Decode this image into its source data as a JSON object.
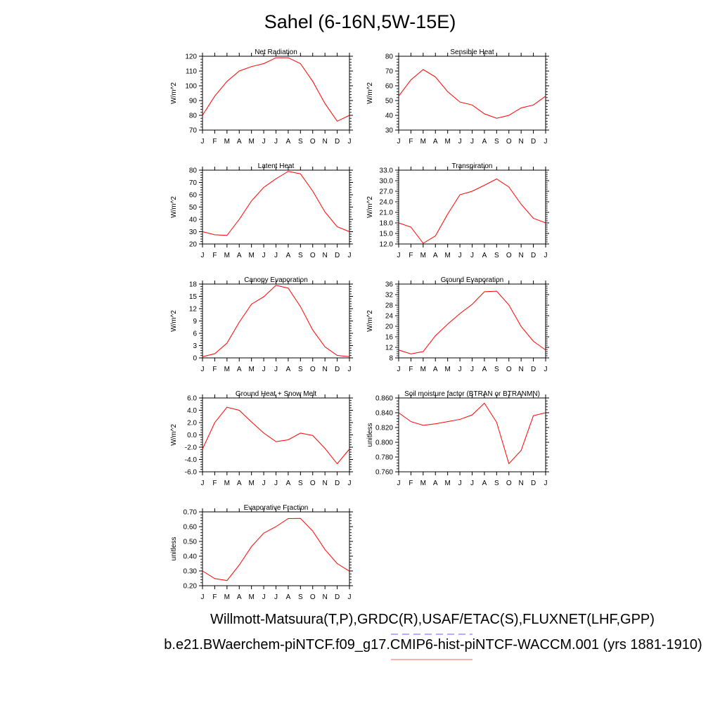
{
  "page": {
    "title": "Sahel (6-16N,5W-15E)",
    "legend_line_1": "Willmott-Matsuura(T,P),GRDC(R),USAF/ETAC(S),FLUXNET(LHF,GPP)",
    "legend_line_2": "b.e21.BWaerchem-piNTCF.f09_g17.CMIP6-hist-piNTCF-WACCM.001 (yrs 1881-1910)",
    "legend_obs_color": "#8080ff",
    "legend_model_color": "#ff8080",
    "line_color": "#ff0000"
  },
  "chart_data": [
    {
      "type": "line",
      "title": "Net Radiation",
      "ylabel": "W/m^2",
      "categories": [
        "J",
        "F",
        "M",
        "A",
        "M",
        "J",
        "J",
        "A",
        "S",
        "O",
        "N",
        "D",
        "J"
      ],
      "ylim": [
        70,
        120
      ],
      "yticks": [
        "70",
        "80",
        "90",
        "100",
        "110",
        "120"
      ],
      "series": [
        {
          "values": [
            80,
            93,
            103,
            110,
            113,
            115,
            119,
            119,
            115,
            103,
            88,
            76,
            80
          ]
        }
      ]
    },
    {
      "type": "line",
      "title": "Sensible Heat",
      "ylabel": "W/m^2",
      "categories": [
        "J",
        "F",
        "M",
        "A",
        "M",
        "J",
        "J",
        "A",
        "S",
        "O",
        "N",
        "D",
        "J"
      ],
      "ylim": [
        30,
        80
      ],
      "yticks": [
        "30",
        "40",
        "50",
        "60",
        "70",
        "80"
      ],
      "series": [
        {
          "values": [
            53,
            64,
            71,
            66,
            56,
            49,
            47,
            41,
            38,
            40,
            45,
            47,
            53
          ]
        }
      ]
    },
    {
      "type": "line",
      "title": "Latent Heat",
      "ylabel": "W/m^2",
      "categories": [
        "J",
        "F",
        "M",
        "A",
        "M",
        "J",
        "J",
        "A",
        "S",
        "O",
        "N",
        "D",
        "J"
      ],
      "ylim": [
        20,
        80
      ],
      "yticks": [
        "20",
        "30",
        "40",
        "50",
        "60",
        "70",
        "80"
      ],
      "series": [
        {
          "values": [
            30,
            27.5,
            27,
            40,
            55,
            66,
            73,
            79,
            77,
            63,
            46,
            34,
            30
          ]
        }
      ]
    },
    {
      "type": "line",
      "title": "Transpiration",
      "ylabel": "W/m^2",
      "categories": [
        "J",
        "F",
        "M",
        "A",
        "M",
        "J",
        "J",
        "A",
        "S",
        "O",
        "N",
        "D",
        "J"
      ],
      "ylim": [
        12,
        33
      ],
      "yticks": [
        "12.0",
        "15.0",
        "18.0",
        "21.0",
        "24.0",
        "27.0",
        "30.0",
        "33.0"
      ],
      "series": [
        {
          "values": [
            18,
            16.8,
            12.2,
            14.3,
            20.5,
            26,
            27,
            28.7,
            30.5,
            28.2,
            23.3,
            19.3,
            18
          ]
        }
      ]
    },
    {
      "type": "line",
      "title": "Canopy Evaporation",
      "ylabel": "W/m^2",
      "categories": [
        "J",
        "F",
        "M",
        "A",
        "M",
        "J",
        "J",
        "A",
        "S",
        "O",
        "N",
        "D",
        "J"
      ],
      "ylim": [
        0,
        18
      ],
      "yticks": [
        "0",
        "3",
        "6",
        "9",
        "12",
        "15",
        "18"
      ],
      "series": [
        {
          "values": [
            0.3,
            1,
            3.6,
            8.7,
            13.1,
            14.9,
            17.7,
            17,
            12.5,
            6.8,
            2.7,
            0.6,
            0.3
          ]
        }
      ]
    },
    {
      "type": "line",
      "title": "Ground Evaporation",
      "ylabel": "W/m^2",
      "categories": [
        "J",
        "F",
        "M",
        "A",
        "M",
        "J",
        "J",
        "A",
        "S",
        "O",
        "N",
        "D",
        "J"
      ],
      "ylim": [
        8,
        36
      ],
      "yticks": [
        "8",
        "12",
        "16",
        "20",
        "24",
        "28",
        "32",
        "36"
      ],
      "series": [
        {
          "values": [
            11,
            9.5,
            10.4,
            16.4,
            20.8,
            24.8,
            28.3,
            33.1,
            33.3,
            28.1,
            19.9,
            14.3,
            11
          ]
        }
      ]
    },
    {
      "type": "line",
      "title": "Ground Heat + Snow Melt",
      "ylabel": "W/m^2",
      "categories": [
        "J",
        "F",
        "M",
        "A",
        "M",
        "J",
        "J",
        "A",
        "S",
        "O",
        "N",
        "D",
        "J"
      ],
      "ylim": [
        -6,
        6
      ],
      "yticks": [
        "-6.0",
        "-4.0",
        "-2.0",
        "0.0",
        "2.0",
        "4.0",
        "6.0"
      ],
      "series": [
        {
          "values": [
            -2.3,
            2,
            4.5,
            4,
            2.1,
            0.3,
            -1.1,
            -0.8,
            0.3,
            -0.1,
            -2.2,
            -4.7,
            -2.3
          ]
        }
      ]
    },
    {
      "type": "line",
      "title": "Soil moisture factor (BTRAN or BTRANMN)",
      "ylabel": "unitless",
      "categories": [
        "J",
        "F",
        "M",
        "A",
        "M",
        "J",
        "J",
        "A",
        "S",
        "O",
        "N",
        "D",
        "J"
      ],
      "ylim": [
        0.76,
        0.86
      ],
      "yticks": [
        "0.760",
        "0.780",
        "0.800",
        "0.820",
        "0.840",
        "0.860"
      ],
      "series": [
        {
          "values": [
            0.84,
            0.828,
            0.823,
            0.825,
            0.828,
            0.831,
            0.837,
            0.853,
            0.827,
            0.771,
            0.789,
            0.836,
            0.84
          ]
        }
      ]
    },
    {
      "type": "line",
      "title": "Evaporative Fraction",
      "ylabel": "unitless",
      "categories": [
        "J",
        "F",
        "M",
        "A",
        "M",
        "J",
        "J",
        "A",
        "S",
        "O",
        "N",
        "D",
        "J"
      ],
      "ylim": [
        0.2,
        0.7
      ],
      "yticks": [
        "0.20",
        "0.30",
        "0.40",
        "0.50",
        "0.60",
        "0.70"
      ],
      "series": [
        {
          "values": [
            0.3,
            0.248,
            0.235,
            0.34,
            0.465,
            0.556,
            0.6,
            0.655,
            0.656,
            0.57,
            0.445,
            0.35,
            0.298
          ]
        }
      ]
    }
  ]
}
